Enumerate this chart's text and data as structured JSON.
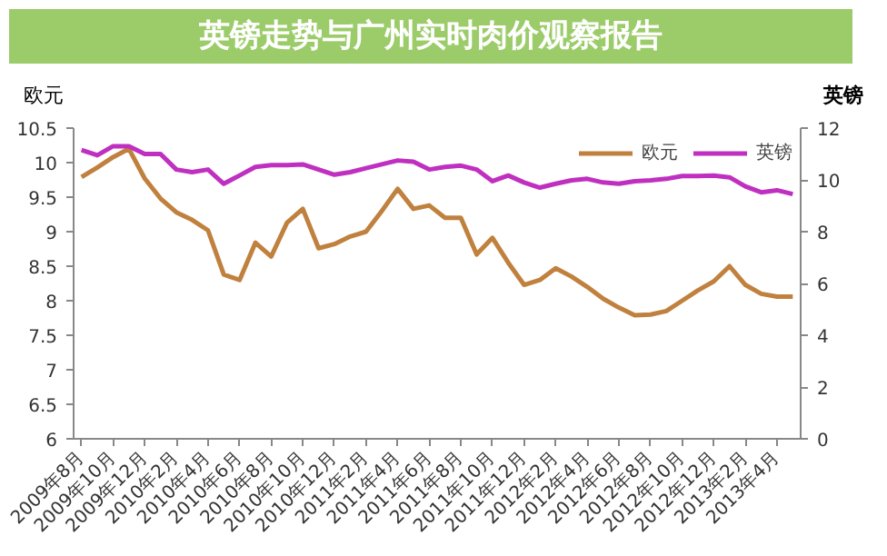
{
  "chart_data": {
    "type": "line",
    "title": "英镑走势与广州实时肉价观察报告",
    "ylabel": "欧元",
    "y2label": "英镑",
    "categories": [
      "2009年8月",
      null,
      "2009年10月",
      null,
      "2009年12月",
      null,
      "2010年2月",
      null,
      "2010年4月",
      null,
      "2010年6月",
      null,
      "2010年8月",
      null,
      "2010年10月",
      null,
      "2010年12月",
      null,
      "2011年2月",
      null,
      "2011年4月",
      null,
      "2011年6月",
      null,
      "2011年8月",
      null,
      "2011年10月",
      null,
      "2011年12月",
      null,
      "2012年2月",
      null,
      "2012年4月",
      null,
      "2012年6月",
      null,
      "2012年8月",
      null,
      "2012年10月",
      null,
      "2012年12月",
      null,
      "2013年2月",
      null,
      "2013年4月",
      null
    ],
    "series": [
      {
        "name": "欧元",
        "color": "#c0813e",
        "values": [
          9.79,
          9.93,
          10.08,
          10.2,
          9.77,
          9.48,
          9.28,
          9.17,
          9.02,
          8.38,
          8.3,
          8.84,
          8.64,
          9.13,
          9.33,
          8.76,
          8.82,
          8.93,
          9.0,
          9.3,
          9.62,
          9.33,
          9.38,
          9.2,
          9.2,
          8.67,
          8.91,
          8.55,
          8.23,
          8.3,
          8.47,
          8.35,
          8.2,
          8.03,
          7.9,
          7.79,
          7.8,
          7.85,
          8.0,
          8.15,
          8.28,
          8.5,
          8.23,
          8.1,
          8.06,
          8.06
        ]
      },
      {
        "name": "英镑",
        "color": "#c030c0",
        "axis": "y2",
        "values": [
          11.15,
          10.95,
          11.3,
          11.3,
          11.0,
          11.0,
          10.4,
          10.3,
          10.4,
          9.85,
          10.17,
          10.5,
          10.57,
          10.57,
          10.6,
          10.4,
          10.2,
          10.3,
          10.45,
          10.6,
          10.75,
          10.7,
          10.4,
          10.5,
          10.55,
          10.4,
          9.95,
          10.17,
          9.9,
          9.7,
          9.85,
          9.98,
          10.04,
          9.9,
          9.85,
          9.95,
          9.98,
          10.04,
          10.15,
          10.15,
          10.17,
          10.1,
          9.75,
          9.52,
          9.6,
          9.45
        ]
      }
    ],
    "ylim": [
      6,
      10.5
    ],
    "yticks": [
      6,
      6.5,
      7,
      7.5,
      8,
      8.5,
      9,
      9.5,
      10,
      10.5
    ],
    "y2lim": [
      0,
      12
    ],
    "y2ticks": [
      0,
      2,
      4,
      6,
      8,
      10,
      12
    ],
    "grid": false,
    "legend": "top right",
    "marker": "none",
    "line_style": "solid"
  }
}
